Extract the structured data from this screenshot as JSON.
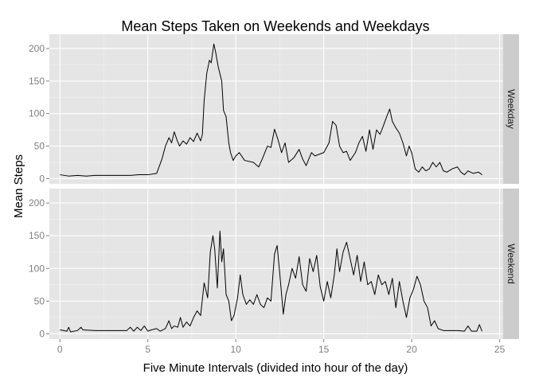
{
  "chart_data": {
    "type": "line",
    "title": "Mean Steps Taken on Weekends and Weekdays",
    "xlabel": "Five Minute Intervals (divided into hour of the day)",
    "ylabel": "Mean Steps",
    "xlim": [
      -0.6,
      25.2
    ],
    "ylim": [
      -8,
      222
    ],
    "x_ticks": [
      0,
      5,
      10,
      15,
      20,
      25
    ],
    "y_ticks": [
      0,
      50,
      100,
      150,
      200
    ],
    "grid": true,
    "facet_by": "day type",
    "colors": {
      "panel_bg": "#E5E5E5",
      "strip_bg": "#CCCCCC",
      "line": "#000000"
    },
    "panels": [
      {
        "strip_label": "Weekday",
        "points": [
          [
            0.0,
            6
          ],
          [
            0.5,
            4
          ],
          [
            1.0,
            5
          ],
          [
            1.5,
            4
          ],
          [
            2.0,
            5
          ],
          [
            3.0,
            5
          ],
          [
            4.0,
            5
          ],
          [
            4.5,
            6
          ],
          [
            5.0,
            6
          ],
          [
            5.5,
            8
          ],
          [
            5.8,
            30
          ],
          [
            6.0,
            50
          ],
          [
            6.2,
            63
          ],
          [
            6.35,
            55
          ],
          [
            6.5,
            72
          ],
          [
            6.65,
            60
          ],
          [
            6.8,
            50
          ],
          [
            7.0,
            58
          ],
          [
            7.2,
            53
          ],
          [
            7.4,
            63
          ],
          [
            7.6,
            57
          ],
          [
            7.8,
            70
          ],
          [
            8.0,
            58
          ],
          [
            8.1,
            68
          ],
          [
            8.2,
            120
          ],
          [
            8.35,
            162
          ],
          [
            8.5,
            182
          ],
          [
            8.6,
            178
          ],
          [
            8.75,
            207
          ],
          [
            8.85,
            195
          ],
          [
            9.0,
            172
          ],
          [
            9.2,
            150
          ],
          [
            9.3,
            105
          ],
          [
            9.45,
            95
          ],
          [
            9.6,
            55
          ],
          [
            9.7,
            40
          ],
          [
            9.85,
            28
          ],
          [
            10.0,
            35
          ],
          [
            10.2,
            40
          ],
          [
            10.5,
            28
          ],
          [
            11.0,
            25
          ],
          [
            11.3,
            18
          ],
          [
            11.5,
            30
          ],
          [
            11.8,
            50
          ],
          [
            12.0,
            48
          ],
          [
            12.2,
            76
          ],
          [
            12.4,
            60
          ],
          [
            12.6,
            40
          ],
          [
            12.8,
            55
          ],
          [
            13.0,
            25
          ],
          [
            13.3,
            32
          ],
          [
            13.6,
            45
          ],
          [
            13.8,
            30
          ],
          [
            14.0,
            20
          ],
          [
            14.3,
            40
          ],
          [
            14.5,
            35
          ],
          [
            14.8,
            38
          ],
          [
            15.0,
            40
          ],
          [
            15.3,
            55
          ],
          [
            15.5,
            88
          ],
          [
            15.7,
            82
          ],
          [
            15.9,
            50
          ],
          [
            16.1,
            40
          ],
          [
            16.3,
            42
          ],
          [
            16.5,
            28
          ],
          [
            16.8,
            40
          ],
          [
            17.0,
            55
          ],
          [
            17.2,
            65
          ],
          [
            17.4,
            42
          ],
          [
            17.6,
            75
          ],
          [
            17.8,
            45
          ],
          [
            18.0,
            75
          ],
          [
            18.2,
            68
          ],
          [
            18.4,
            82
          ],
          [
            18.6,
            97
          ],
          [
            18.75,
            107
          ],
          [
            18.9,
            88
          ],
          [
            19.1,
            78
          ],
          [
            19.3,
            70
          ],
          [
            19.5,
            55
          ],
          [
            19.7,
            35
          ],
          [
            19.85,
            50
          ],
          [
            20.0,
            40
          ],
          [
            20.2,
            15
          ],
          [
            20.4,
            10
          ],
          [
            20.6,
            18
          ],
          [
            20.8,
            12
          ],
          [
            21.0,
            15
          ],
          [
            21.2,
            25
          ],
          [
            21.4,
            18
          ],
          [
            21.6,
            25
          ],
          [
            21.8,
            12
          ],
          [
            22.0,
            10
          ],
          [
            22.3,
            15
          ],
          [
            22.6,
            18
          ],
          [
            22.8,
            10
          ],
          [
            23.0,
            6
          ],
          [
            23.2,
            12
          ],
          [
            23.5,
            8
          ],
          [
            23.8,
            10
          ],
          [
            24.0,
            6
          ]
        ]
      },
      {
        "strip_label": "Weekend",
        "points": [
          [
            0.0,
            6
          ],
          [
            0.4,
            4
          ],
          [
            0.5,
            10
          ],
          [
            0.6,
            3
          ],
          [
            1.0,
            5
          ],
          [
            1.2,
            10
          ],
          [
            1.3,
            6
          ],
          [
            2.0,
            5
          ],
          [
            3.0,
            5
          ],
          [
            3.8,
            5
          ],
          [
            4.0,
            10
          ],
          [
            4.2,
            4
          ],
          [
            4.4,
            10
          ],
          [
            4.6,
            5
          ],
          [
            4.8,
            12
          ],
          [
            5.0,
            4
          ],
          [
            5.2,
            6
          ],
          [
            5.5,
            8
          ],
          [
            5.7,
            4
          ],
          [
            6.0,
            8
          ],
          [
            6.2,
            20
          ],
          [
            6.35,
            8
          ],
          [
            6.5,
            12
          ],
          [
            6.7,
            10
          ],
          [
            6.85,
            25
          ],
          [
            7.0,
            10
          ],
          [
            7.2,
            18
          ],
          [
            7.4,
            12
          ],
          [
            7.6,
            25
          ],
          [
            7.8,
            35
          ],
          [
            8.0,
            28
          ],
          [
            8.2,
            78
          ],
          [
            8.4,
            55
          ],
          [
            8.55,
            125
          ],
          [
            8.7,
            150
          ],
          [
            8.8,
            130
          ],
          [
            8.95,
            70
          ],
          [
            9.1,
            157
          ],
          [
            9.2,
            110
          ],
          [
            9.3,
            130
          ],
          [
            9.45,
            60
          ],
          [
            9.6,
            50
          ],
          [
            9.75,
            20
          ],
          [
            9.9,
            28
          ],
          [
            10.1,
            55
          ],
          [
            10.25,
            90
          ],
          [
            10.4,
            60
          ],
          [
            10.6,
            45
          ],
          [
            10.8,
            52
          ],
          [
            11.0,
            45
          ],
          [
            11.2,
            60
          ],
          [
            11.4,
            45
          ],
          [
            11.6,
            40
          ],
          [
            11.8,
            55
          ],
          [
            12.0,
            50
          ],
          [
            12.2,
            122
          ],
          [
            12.35,
            135
          ],
          [
            12.5,
            92
          ],
          [
            12.7,
            30
          ],
          [
            12.85,
            60
          ],
          [
            13.0,
            75
          ],
          [
            13.2,
            100
          ],
          [
            13.4,
            85
          ],
          [
            13.6,
            118
          ],
          [
            13.8,
            75
          ],
          [
            14.0,
            65
          ],
          [
            14.2,
            115
          ],
          [
            14.4,
            95
          ],
          [
            14.6,
            120
          ],
          [
            14.8,
            72
          ],
          [
            15.0,
            50
          ],
          [
            15.2,
            80
          ],
          [
            15.4,
            55
          ],
          [
            15.6,
            90
          ],
          [
            15.75,
            130
          ],
          [
            15.9,
            95
          ],
          [
            16.1,
            125
          ],
          [
            16.3,
            140
          ],
          [
            16.5,
            115
          ],
          [
            16.7,
            90
          ],
          [
            16.9,
            120
          ],
          [
            17.1,
            80
          ],
          [
            17.3,
            110
          ],
          [
            17.5,
            75
          ],
          [
            17.7,
            80
          ],
          [
            17.9,
            60
          ],
          [
            18.1,
            90
          ],
          [
            18.3,
            75
          ],
          [
            18.5,
            80
          ],
          [
            18.7,
            60
          ],
          [
            18.9,
            85
          ],
          [
            19.1,
            40
          ],
          [
            19.3,
            80
          ],
          [
            19.5,
            50
          ],
          [
            19.7,
            25
          ],
          [
            19.9,
            55
          ],
          [
            20.1,
            68
          ],
          [
            20.3,
            88
          ],
          [
            20.5,
            75
          ],
          [
            20.7,
            50
          ],
          [
            20.9,
            40
          ],
          [
            21.1,
            12
          ],
          [
            21.3,
            20
          ],
          [
            21.5,
            8
          ],
          [
            21.8,
            5
          ],
          [
            22.2,
            5
          ],
          [
            22.6,
            5
          ],
          [
            23.0,
            4
          ],
          [
            23.2,
            12
          ],
          [
            23.4,
            4
          ],
          [
            23.7,
            4
          ],
          [
            23.85,
            14
          ],
          [
            24.0,
            4
          ]
        ]
      }
    ]
  }
}
